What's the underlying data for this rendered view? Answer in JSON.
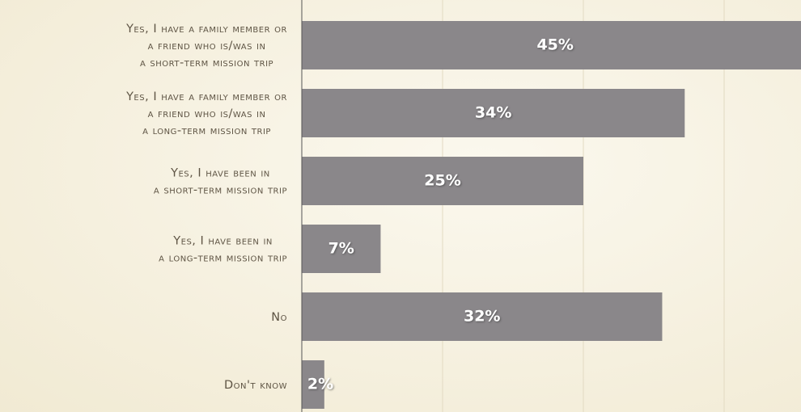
{
  "chart_data": {
    "type": "bar",
    "orientation": "horizontal",
    "categories": [
      "Yes, I have a family member or\na friend who is/was in\na short-term mission trip",
      "Yes, I have a family member or\na friend who is/was in\na long-term mission trip",
      "Yes, I have been in\na short-term mission trip",
      "Yes, I have been in\na long-term mission trip",
      "No",
      "Don't know"
    ],
    "values": [
      45,
      34,
      25,
      7,
      32,
      2
    ],
    "value_labels": [
      "45%",
      "34%",
      "25%",
      "7%",
      "32%",
      "2%"
    ],
    "color": "#8a878a",
    "xlim": [
      0,
      50
    ],
    "xticks": [
      12.5,
      25,
      37.5
    ],
    "grid": true
  }
}
